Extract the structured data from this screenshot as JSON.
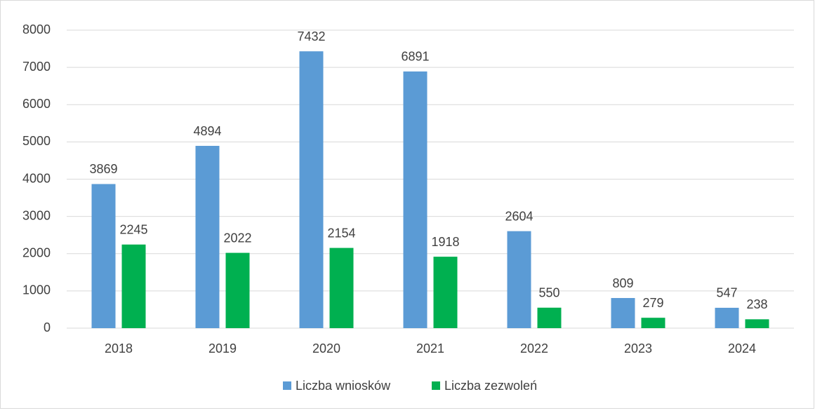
{
  "chart_data": {
    "type": "bar",
    "categories": [
      "2018",
      "2019",
      "2020",
      "2021",
      "2022",
      "2023",
      "2024"
    ],
    "series": [
      {
        "name": "Liczba wniosków",
        "color": "#5b9bd5",
        "values": [
          3869,
          4894,
          7432,
          6891,
          2604,
          809,
          547
        ]
      },
      {
        "name": "Liczba zezwoleń",
        "color": "#00b050",
        "values": [
          2245,
          2022,
          2154,
          1918,
          550,
          279,
          238
        ]
      }
    ],
    "ylim": [
      0,
      8000
    ],
    "yticks": [
      0,
      1000,
      2000,
      3000,
      4000,
      5000,
      6000,
      7000,
      8000
    ],
    "grid": true,
    "legend": "bottom",
    "data_labels": true
  }
}
